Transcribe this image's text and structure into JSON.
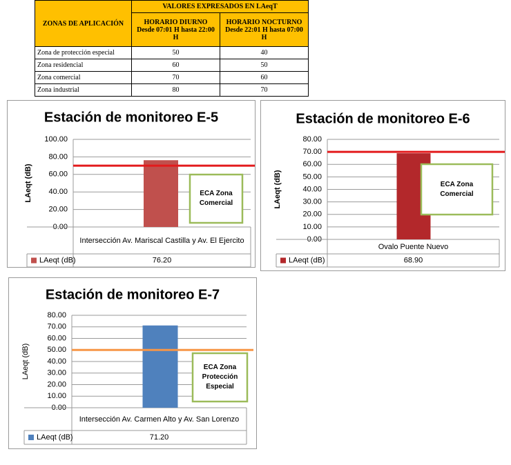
{
  "table": {
    "zone_header": "ZONAS DE APLICACIÓN",
    "values_header": "VALORES EXPRESADOS EN LAeqT",
    "columns": [
      {
        "title": "HORARIO DIURNO",
        "subtitle": "Desde 07:01 H hasta 22:00 H"
      },
      {
        "title": "HORARIO NOCTURNO",
        "subtitle": "Desde 22:01 H hasta 07:00 H"
      }
    ],
    "rows": [
      [
        "Zona de protección especial",
        50,
        40
      ],
      [
        "Zona residencial",
        60,
        50
      ],
      [
        "Zona comercial",
        70,
        60
      ],
      [
        "Zona industrial",
        80,
        70
      ]
    ]
  },
  "chart_data": [
    {
      "type": "bar",
      "title": "Estación de monitoreo E-5",
      "ylabel": "LAeqt (dB)",
      "categories": [
        "Intersección Av. Mariscal Castilla y Av. El Ejercito"
      ],
      "series": [
        {
          "name": "LAeqt (dB)",
          "color": "#c0504d",
          "values": [
            76.2
          ],
          "value_labels": [
            "76.20"
          ]
        }
      ],
      "ylim": [
        0,
        100
      ],
      "yticks": [
        {
          "value": 0,
          "label": "0.00"
        },
        {
          "value": 20,
          "label": "20.00"
        },
        {
          "value": 40,
          "label": "40.00"
        },
        {
          "value": 60,
          "label": "60.00"
        },
        {
          "value": 80,
          "label": "80.00"
        },
        {
          "value": 100,
          "label": "100.00"
        }
      ],
      "grid": true,
      "reference_line": {
        "value": 70,
        "color": "#e31a1c"
      },
      "annotation": "ECA Zona Comercial"
    },
    {
      "type": "bar",
      "title": "Estación de monitoreo E-6",
      "ylabel": "LAeqt (dB)",
      "categories": [
        "Ovalo Puente Nuevo"
      ],
      "series": [
        {
          "name": "LAeqt (dB)",
          "color": "#b3282b",
          "values": [
            68.9
          ],
          "value_labels": [
            "68.90"
          ]
        }
      ],
      "ylim": [
        0,
        80
      ],
      "yticks": [
        {
          "value": 0,
          "label": "0.00"
        },
        {
          "value": 10,
          "label": "10.00"
        },
        {
          "value": 20,
          "label": "20.00"
        },
        {
          "value": 30,
          "label": "30.00"
        },
        {
          "value": 40,
          "label": "40.00"
        },
        {
          "value": 50,
          "label": "50.00"
        },
        {
          "value": 60,
          "label": "60.00"
        },
        {
          "value": 70,
          "label": "70.00"
        },
        {
          "value": 80,
          "label": "80.00"
        }
      ],
      "grid": true,
      "reference_line": {
        "value": 70,
        "color": "#e31a1c"
      },
      "annotation": "ECA Zona Comercial"
    },
    {
      "type": "bar",
      "title": "Estación de monitoreo E-7",
      "ylabel": "LAeqt (dB)",
      "categories": [
        "Intersección Av. Carmen Alto y Av. San Lorenzo"
      ],
      "series": [
        {
          "name": "LAeqt (dB)",
          "color": "#4f81bd",
          "values": [
            71.2
          ],
          "value_labels": [
            "71.20"
          ]
        }
      ],
      "ylim": [
        0,
        80
      ],
      "yticks": [
        {
          "value": 0,
          "label": "0.00"
        },
        {
          "value": 10,
          "label": "10.00"
        },
        {
          "value": 20,
          "label": "20.00"
        },
        {
          "value": 30,
          "label": "30.00"
        },
        {
          "value": 40,
          "label": "40.00"
        },
        {
          "value": 50,
          "label": "50.00"
        },
        {
          "value": 60,
          "label": "60.00"
        },
        {
          "value": 70,
          "label": "70.00"
        },
        {
          "value": 80,
          "label": "80.00"
        }
      ],
      "grid": true,
      "reference_line": {
        "value": 50,
        "color": "#f79646"
      },
      "annotation": "ECA Zona Protección Especial"
    }
  ]
}
